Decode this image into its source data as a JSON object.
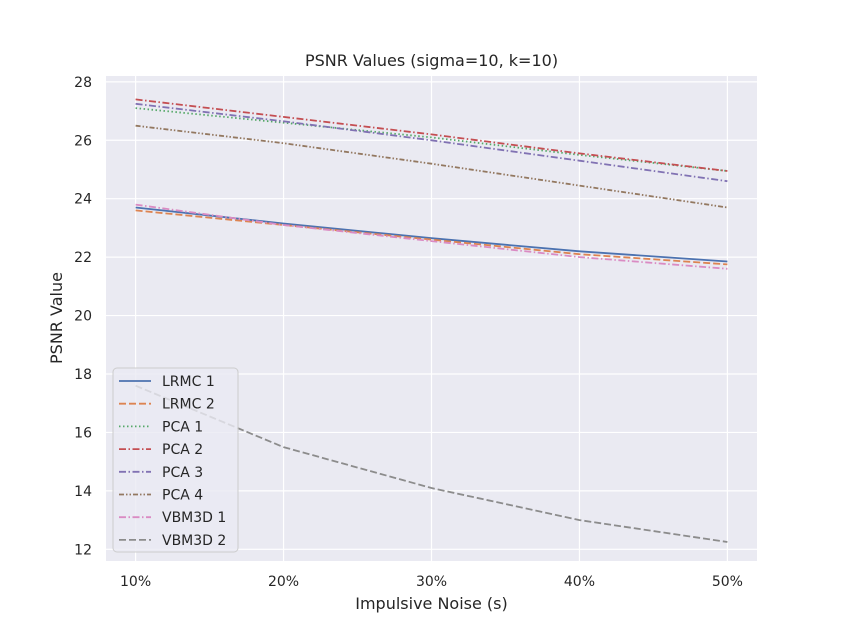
{
  "chart_data": {
    "type": "line",
    "title": "PSNR Values (sigma=10, k=10)",
    "xlabel": "Impulsive Noise (s)",
    "ylabel": "PSNR Value",
    "categories": [
      "10%",
      "20%",
      "30%",
      "40%",
      "50%"
    ],
    "x": [
      10,
      20,
      30,
      40,
      50
    ],
    "xlim": [
      8,
      52
    ],
    "ylim": [
      11.6,
      28.2
    ],
    "yticks": [
      12,
      14,
      16,
      18,
      20,
      22,
      24,
      26,
      28
    ],
    "grid": true,
    "background": "#eaeaf2",
    "legend_position": "lower-left",
    "series": [
      {
        "name": "LRMC 1",
        "color": "#4c72b0",
        "dash": "solid",
        "values": [
          23.7,
          23.15,
          22.65,
          22.2,
          21.85
        ]
      },
      {
        "name": "LRMC 2",
        "color": "#dd8452",
        "dash": "dashed",
        "values": [
          23.6,
          23.1,
          22.6,
          22.1,
          21.75
        ]
      },
      {
        "name": "PCA 1",
        "color": "#55a868",
        "dash": "dotted",
        "values": [
          27.1,
          26.6,
          26.1,
          25.5,
          24.95
        ]
      },
      {
        "name": "PCA 2",
        "color": "#c44e52",
        "dash": "dashdot",
        "values": [
          27.4,
          26.8,
          26.2,
          25.55,
          24.95
        ]
      },
      {
        "name": "PCA 3",
        "color": "#8172b3",
        "dash": "dashdot",
        "values": [
          27.25,
          26.65,
          26.0,
          25.3,
          24.6
        ]
      },
      {
        "name": "PCA 4",
        "color": "#937860",
        "dash": "dashdotdot",
        "values": [
          26.5,
          25.9,
          25.2,
          24.45,
          23.7
        ]
      },
      {
        "name": "VBM3D 1",
        "color": "#da8bc3",
        "dash": "dashdot",
        "values": [
          23.8,
          23.1,
          22.55,
          22.0,
          21.6
        ]
      },
      {
        "name": "VBM3D 2",
        "color": "#8c8c8c",
        "dash": "dashed",
        "values": [
          17.6,
          15.5,
          14.1,
          13.0,
          12.25
        ]
      }
    ]
  }
}
